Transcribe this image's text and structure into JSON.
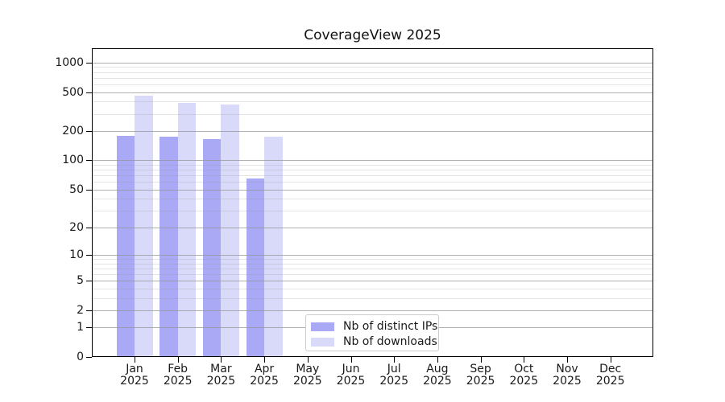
{
  "chart_data": {
    "type": "bar",
    "title": "CoverageView 2025",
    "year_label": "2025",
    "months": [
      "Jan",
      "Feb",
      "Mar",
      "Apr",
      "May",
      "Jun",
      "Jul",
      "Aug",
      "Sep",
      "Oct",
      "Nov",
      "Dec"
    ],
    "series": [
      {
        "name": "Nb of distinct IPs",
        "color": "#a9a9f6",
        "values": [
          177,
          174,
          164,
          65,
          0,
          0,
          0,
          0,
          0,
          0,
          0,
          0
        ]
      },
      {
        "name": "Nb of downloads",
        "color": "#d9d9f9",
        "values": [
          458,
          388,
          374,
          176,
          0,
          0,
          0,
          0,
          0,
          0,
          0,
          0
        ]
      }
    ],
    "y_ticks": [
      0,
      1,
      2,
      5,
      10,
      20,
      50,
      100,
      200,
      500,
      1000
    ],
    "y_minor_ticks": [
      3,
      4,
      6,
      7,
      8,
      9,
      30,
      40,
      60,
      70,
      80,
      90,
      300,
      400,
      600,
      700,
      800,
      900
    ],
    "y_scale": "log1p",
    "ylim": [
      0,
      1400
    ],
    "grid": true,
    "legend_position": "lower-center-left"
  },
  "colors": {
    "background": "#ffffff",
    "spine": "#000000",
    "grid_major": "#b0b0b0",
    "grid_minor": "#e6e6e6",
    "text": "#1a1a1a"
  }
}
